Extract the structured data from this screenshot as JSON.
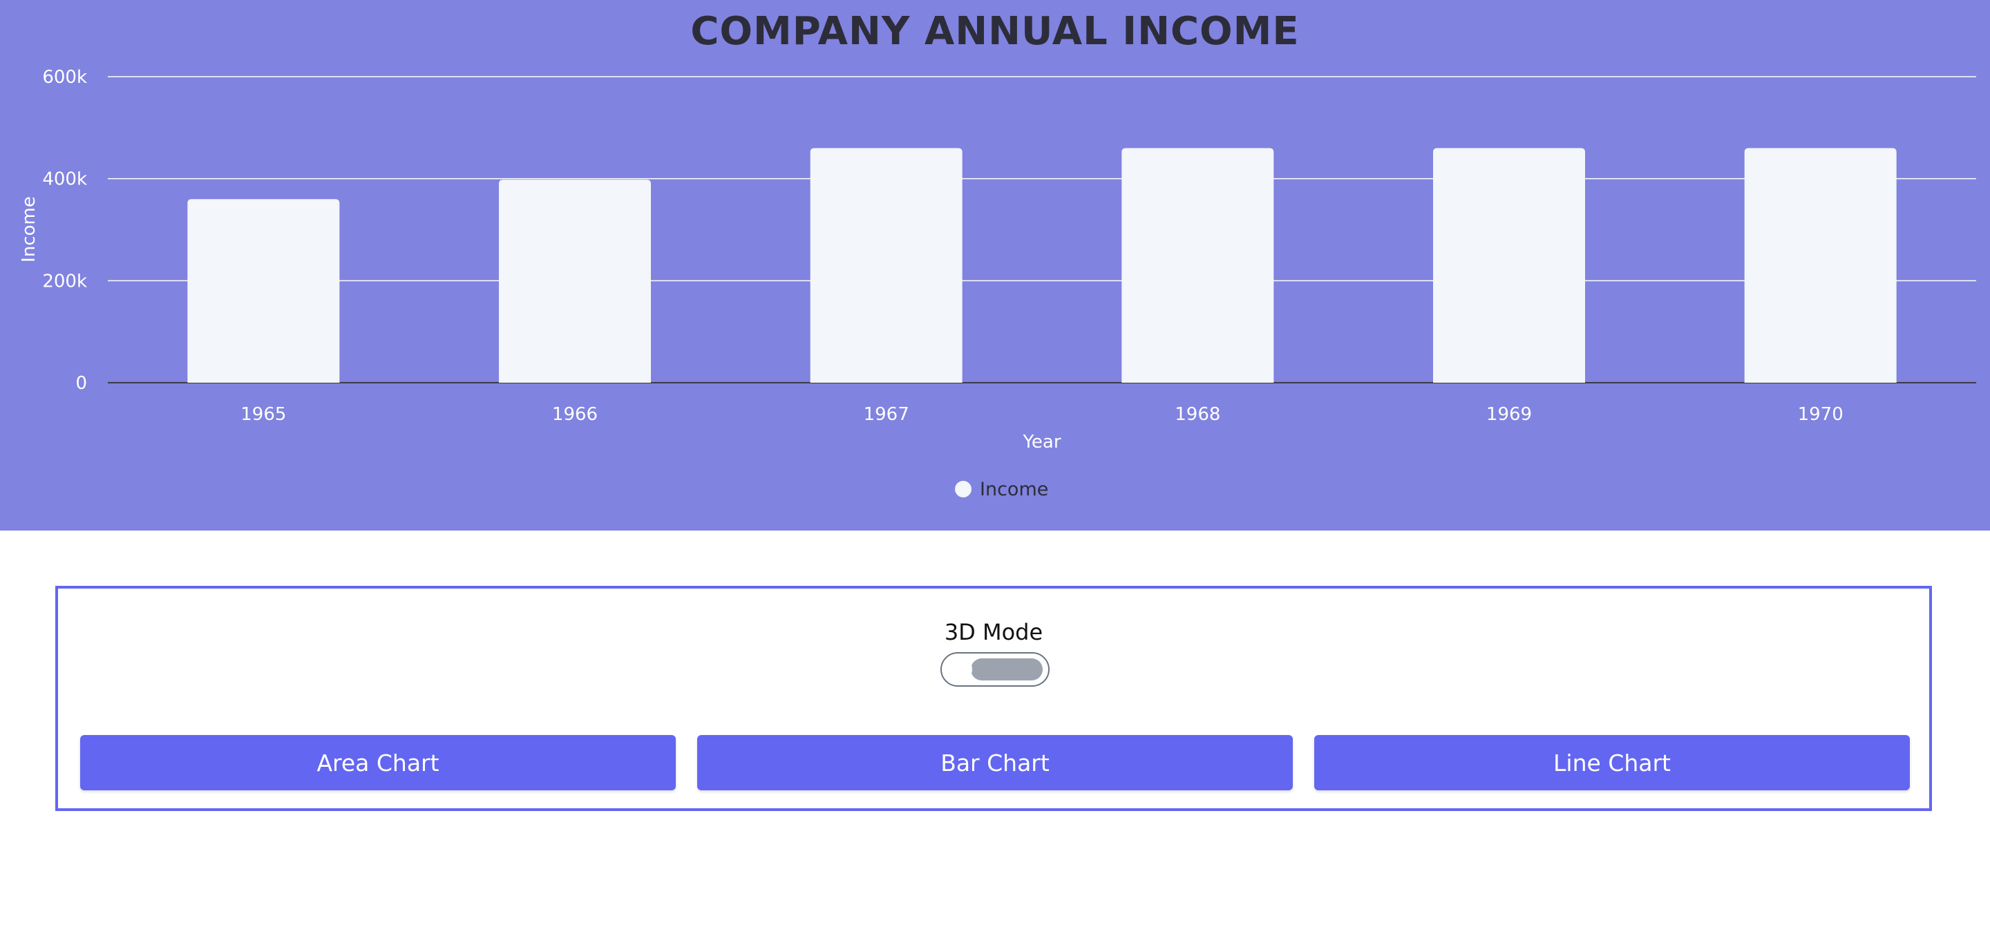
{
  "chart_data": {
    "type": "bar",
    "title": "COMPANY ANNUAL INCOME",
    "xlabel": "Year",
    "ylabel": "Income",
    "categories": [
      "1965",
      "1966",
      "1967",
      "1968",
      "1969",
      "1970"
    ],
    "series": [
      {
        "name": "Income",
        "values": [
          360000,
          398000,
          460000,
          460000,
          460000,
          460000
        ]
      }
    ],
    "ylim": [
      0,
      600000
    ],
    "yticks": [
      0,
      200000,
      400000,
      600000
    ],
    "ytick_labels": [
      "0",
      "200k",
      "400k",
      "600k"
    ],
    "grid": true,
    "legend": "bottom-center"
  },
  "colors": {
    "panel_background": "#8083df",
    "bar_fill": "#f3f6fa",
    "button": "#6366f1",
    "toggle_track": "#9ca3af"
  },
  "controls": {
    "mode_label": "3D Mode",
    "mode_enabled": false,
    "buttons": {
      "area": "Area Chart",
      "bar": "Bar Chart",
      "line": "Line Chart"
    }
  }
}
